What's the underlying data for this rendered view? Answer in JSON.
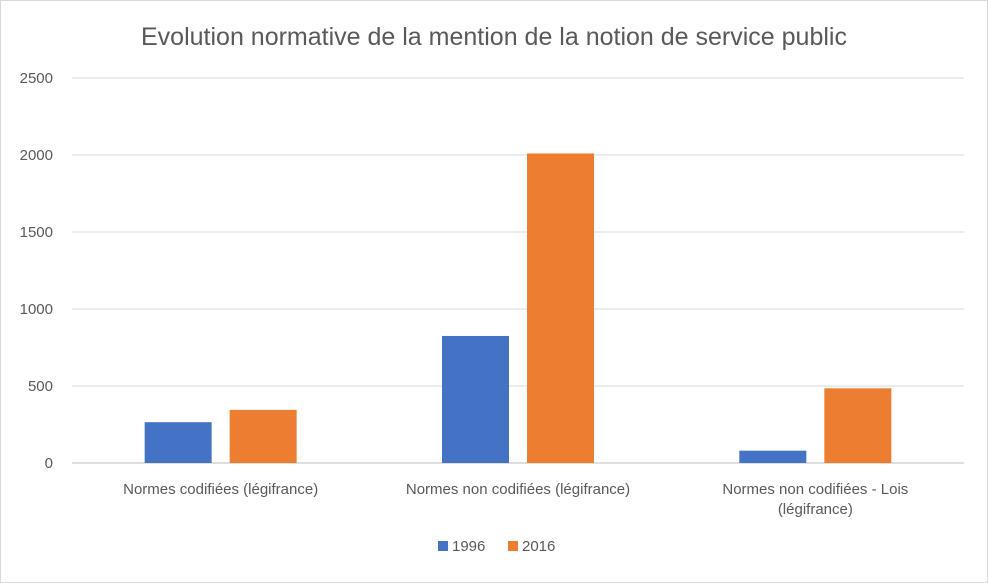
{
  "chart_data": {
    "type": "bar",
    "title": "Evolution normative de la mention de la notion de service public",
    "categories": [
      [
        "Normes codifiées (légifrance)"
      ],
      [
        "Normes non codifiées (légifrance)"
      ],
      [
        "Normes non codifiées - Lois",
        "(légifrance)"
      ]
    ],
    "series": [
      {
        "name": "1996",
        "color": "#4472c4",
        "values": [
          265,
          825,
          80
        ]
      },
      {
        "name": "2016",
        "color": "#ed7d31",
        "values": [
          345,
          2010,
          485
        ]
      }
    ],
    "ylim": [
      0,
      2500
    ],
    "yticks": [
      "0",
      "500",
      "1000",
      "1500",
      "2000",
      "2500"
    ],
    "grid": true,
    "legend": "bottom"
  }
}
